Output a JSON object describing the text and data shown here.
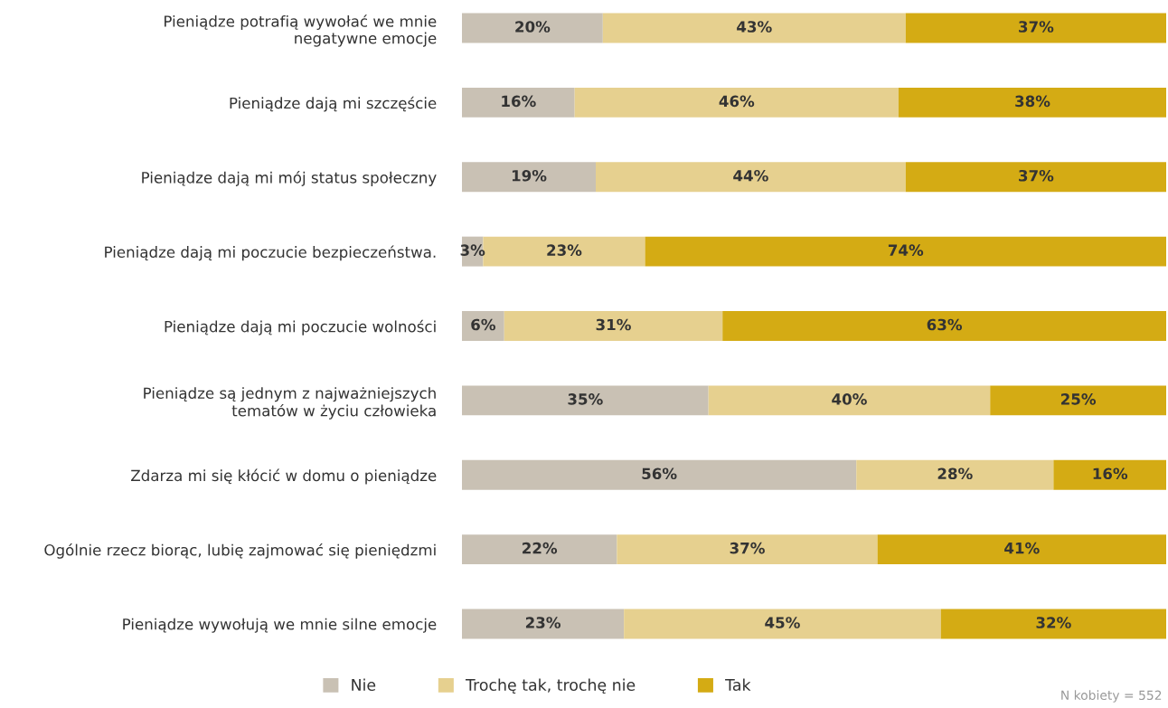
{
  "chart_data": {
    "type": "bar",
    "orientation": "horizontal",
    "stacked": true,
    "tick_labels": "y",
    "legend": "bottom",
    "grid": false,
    "xlim": [
      0,
      100
    ],
    "categories": [
      "Pieniądze potrafią wywołać we mnie\nnegatywne emocje",
      "Pieniądze dają mi szczęście",
      "Pieniądze dają mi mój status społeczny",
      "Pieniądze dają mi poczucie bezpieczeństwa.",
      "Pieniądze dają mi poczucie wolności",
      "Pieniądze są jednym z najważniejszych\ntematów w życiu człowieka",
      "Zdarza mi się kłócić w domu o pieniądze",
      "Ogólnie rzecz biorąc, lubię zajmować się pieniędzmi",
      "Pieniądze wywołują we mnie silne emocje"
    ],
    "series": [
      {
        "name": "Nie",
        "color": "#c9c1b4",
        "values": [
          20,
          16,
          19,
          3,
          6,
          35,
          56,
          22,
          23
        ],
        "value_labels": [
          "20%",
          "16%",
          "19%",
          "3%",
          "6%",
          "35%",
          "56%",
          "22%",
          "23%"
        ]
      },
      {
        "name": "Trochę tak, trochę nie",
        "color": "#e6d08f",
        "values": [
          43,
          46,
          44,
          23,
          31,
          40,
          28,
          37,
          45
        ],
        "value_labels": [
          "43%",
          "46%",
          "44%",
          "23%",
          "31%",
          "40%",
          "28%",
          "37%",
          "45%"
        ]
      },
      {
        "name": "Tak",
        "color": "#d4ab14",
        "values": [
          37,
          38,
          37,
          74,
          63,
          25,
          16,
          41,
          32
        ],
        "value_labels": [
          "37%",
          "38%",
          "37%",
          "74%",
          "63%",
          "25%",
          "16%",
          "41%",
          "32%"
        ]
      }
    ],
    "annotations": [
      "N kobiety = 552"
    ]
  }
}
